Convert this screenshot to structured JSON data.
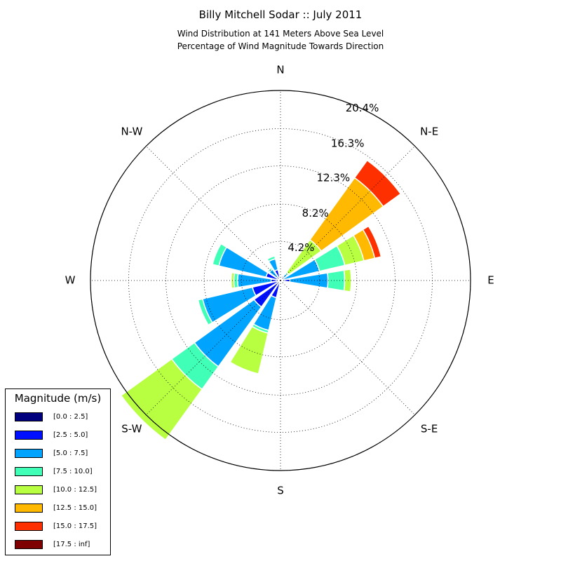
{
  "title": "Billy Mitchell Sodar :: July 2011",
  "subtitle_lines": [
    "Wind Distribution at 141 Meters Above Sea Level",
    "Percentage of Wind Magnitude Towards Direction"
  ],
  "chart_data": {
    "type": "windrose",
    "title": "Billy Mitchell Sodar :: July 2011",
    "subtitle": "Wind Distribution at 141 Meters Above Sea Level / Percentage of Wind Magnitude Towards Direction",
    "direction_labels": [
      "N",
      "N-E",
      "E",
      "S-E",
      "S",
      "S-W",
      "W",
      "N-W"
    ],
    "radial_ticks": [
      "4.2%",
      "8.2%",
      "12.3%",
      "16.3%",
      "20.4%"
    ],
    "radial_tick_values": [
      4.2,
      8.2,
      12.3,
      16.3,
      20.4
    ],
    "rmax": 20.4,
    "grid": true,
    "legend": {
      "title": "Magnitude (m/s)",
      "position": "bottom-left",
      "bins": [
        {
          "label": "[0.0 : 2.5]",
          "color": "#00007f"
        },
        {
          "label": "[2.5 : 5.0]",
          "color": "#0010ff"
        },
        {
          "label": "[5.0 : 7.5]",
          "color": "#00a4ff"
        },
        {
          "label": "[7.5 : 10.0]",
          "color": "#40ffb7"
        },
        {
          "label": "[10.0 : 12.5]",
          "color": "#b7ff40"
        },
        {
          "label": "[12.5 : 15.0]",
          "color": "#ffb900"
        },
        {
          "label": "[15.0 : 17.5]",
          "color": "#ff3000"
        },
        {
          "label": "[17.5 : inf]",
          "color": "#7f0000"
        }
      ]
    },
    "sectors": [
      {
        "direction_deg": 0,
        "cumulative": [
          0.1,
          0.4
        ]
      },
      {
        "direction_deg": 22.5,
        "cumulative": [
          0.1,
          0.5
        ]
      },
      {
        "direction_deg": 45,
        "cumulative": [
          0.1,
          0.3,
          0.9,
          1.1,
          5.4,
          13.6,
          15.9
        ]
      },
      {
        "direction_deg": 67.5,
        "cumulative": [
          0.1,
          0.3,
          4.3,
          7.1,
          9.2,
          10.4,
          11.1
        ]
      },
      {
        "direction_deg": 90,
        "cumulative": [
          0.1,
          1.0,
          5.1,
          6.9,
          7.6
        ]
      },
      {
        "direction_deg": 112.5,
        "cumulative": [
          0.1,
          0.4
        ]
      },
      {
        "direction_deg": 135,
        "cumulative": [
          0.1,
          0.2
        ]
      },
      {
        "direction_deg": 157.5,
        "cumulative": [
          0.1,
          0.3
        ]
      },
      {
        "direction_deg": 180,
        "cumulative": [
          0.1,
          0.3
        ]
      },
      {
        "direction_deg": 202.5,
        "cumulative": [
          0.1,
          1.9,
          5.5,
          5.8,
          10.3
        ]
      },
      {
        "direction_deg": 225,
        "cumulative": [
          0.1,
          3.5,
          11.4,
          14.4,
          21.1
        ]
      },
      {
        "direction_deg": 247.5,
        "cumulative": [
          0.1,
          3.1,
          8.6,
          9.1
        ]
      },
      {
        "direction_deg": 270,
        "cumulative": [
          0.1,
          1.0,
          4.6,
          5.0,
          5.3
        ]
      },
      {
        "direction_deg": 292.5,
        "cumulative": [
          0.1,
          1.6,
          6.8,
          7.5
        ]
      },
      {
        "direction_deg": 315,
        "cumulative": [
          0.1,
          0.3,
          1.5,
          1.7
        ]
      },
      {
        "direction_deg": 337.5,
        "cumulative": [
          0.1,
          1.2,
          2.4,
          2.7
        ]
      }
    ]
  }
}
